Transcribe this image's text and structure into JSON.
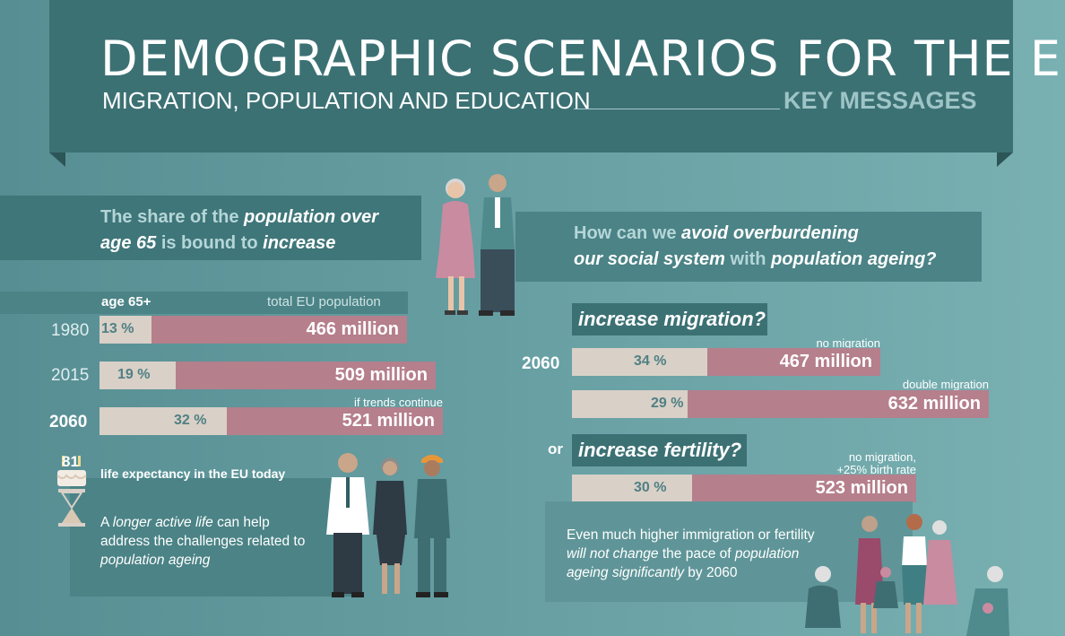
{
  "header": {
    "title": "DEMOGRAPHIC SCENARIOS FOR THE EU",
    "subtitle": "MIGRATION, POPULATION AND EDUCATION",
    "key_messages": "KEY MESSAGES"
  },
  "left": {
    "headline_a": "The share of the ",
    "headline_b": "population over",
    "headline_c": "age 65",
    "headline_d": " is bound to ",
    "headline_e": "increase",
    "col_age": "age 65+",
    "col_total": "total EU population",
    "rows": [
      {
        "year": "1980",
        "pct": "13 %",
        "total": "466 million",
        "share": 0.13
      },
      {
        "year": "2015",
        "pct": "19 %",
        "total": "509 million",
        "share": 0.19
      },
      {
        "year": "2060",
        "pct": "32 %",
        "total": "521 million",
        "share": 0.32,
        "note": "if trends continue"
      }
    ],
    "life_expectancy_value": "81",
    "life_expectancy_label": "life expectancy in the EU today",
    "box_a": "A ",
    "box_b": "longer active life",
    "box_c": " can help address the challenges related to ",
    "box_d": "population ageing"
  },
  "right": {
    "q_a": "How can we ",
    "q_b": "avoid overburdening",
    "q_c": "our social system",
    "q_d": " with ",
    "q_e": "population ageing?",
    "migration_label": "increase migration?",
    "year": "2060",
    "scenarios": [
      {
        "note": "no migration",
        "pct": "34 %",
        "total": "467 million",
        "share": 0.34
      },
      {
        "note": "double migration",
        "pct": "29 %",
        "total": "632 million",
        "share": 0.29
      },
      {
        "note_1": "no migration,",
        "note_2": "+25% birth rate",
        "pct": "30 %",
        "total": "523 million",
        "share": 0.3
      }
    ],
    "or_label": "or",
    "fertility_label": "increase fertility?",
    "box_a": "Even much higher immigration or fertility ",
    "box_b": "will not change",
    "box_c": " the pace of ",
    "box_d": "population ageing significantly",
    "box_e": " by 2060"
  },
  "colors": {
    "banner": "#3c7174",
    "bar_total": "#b57f8c",
    "bar_age": "#d9d0c7",
    "key_messages": "#9ec4c6"
  },
  "icons": [
    "elderly-couple-icon",
    "workers-icon",
    "hourglass-icon",
    "birthday-cake-icon",
    "family-icon"
  ]
}
